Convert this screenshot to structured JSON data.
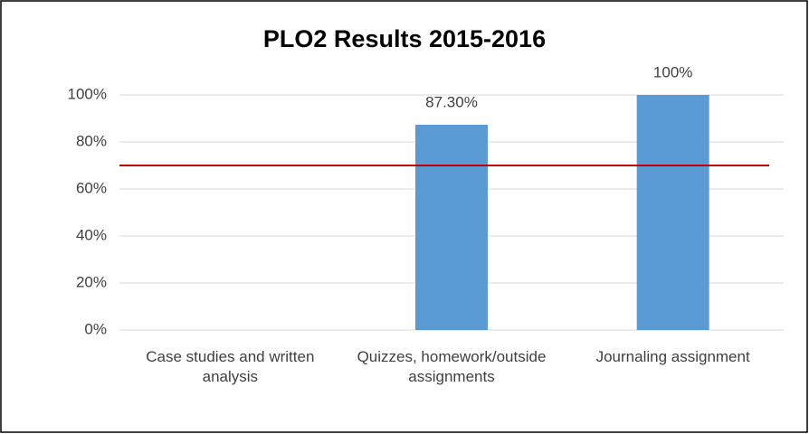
{
  "chart_data": {
    "type": "bar",
    "title": "PLO2 Results 2015-2016",
    "categories": [
      "Case studies and written analysis",
      "Quizzes, homework/outside assignments",
      "Journaling assignment"
    ],
    "values": [
      null,
      87.3,
      100
    ],
    "value_labels": [
      null,
      "87.30%",
      "100%"
    ],
    "color": "#5b9bd5",
    "ylim": [
      0,
      100
    ],
    "yticks": [
      {
        "value": 0,
        "label": "0%"
      },
      {
        "value": 20,
        "label": "20%"
      },
      {
        "value": 40,
        "label": "40%"
      },
      {
        "value": 60,
        "label": "60%"
      },
      {
        "value": 80,
        "label": "80%"
      },
      {
        "value": 100,
        "label": "100%"
      }
    ],
    "grid": true,
    "reference_line": {
      "value": 70,
      "color": "#c00000"
    }
  }
}
